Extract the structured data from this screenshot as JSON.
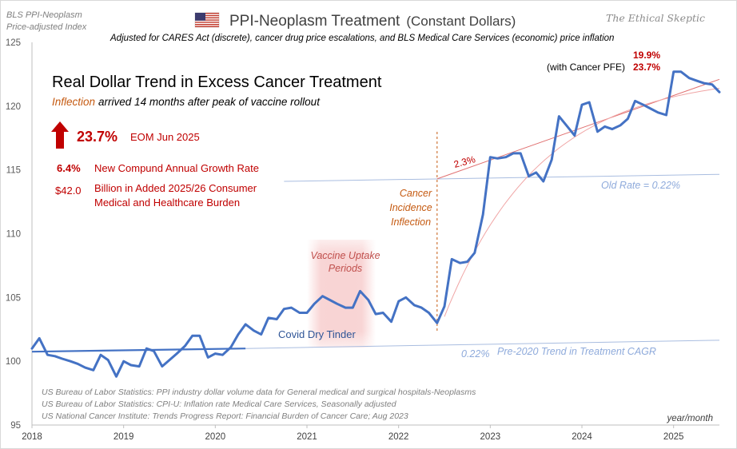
{
  "header": {
    "source_line1": "BLS PPI-Neoplasm",
    "source_line2": "Price-adjusted Index",
    "title": "PPI-Neoplasm Treatment",
    "title_suffix": "(Constant Dollars)",
    "subtitle": "Adjusted for CARES Act (discrete), cancer drug price escalations, and BLS Medical Care Services (economic) price inflation",
    "brand": "The Ethical Skeptic"
  },
  "colors": {
    "series": "#4472c4",
    "trend": "#6a8fd0",
    "trend_light": "#a9bde0",
    "accent_red": "#c00000",
    "orange": "#c55a11",
    "curve_red": "#e07070"
  },
  "chart_data": {
    "type": "line",
    "title": "Real Dollar Trend in Excess Cancer Treatment",
    "xlabel": "year/month",
    "ylabel": "",
    "xlim": [
      2018.0,
      2025.5
    ],
    "ylim": [
      95,
      125
    ],
    "xticks": [
      2018,
      2019,
      2020,
      2021,
      2022,
      2023,
      2024,
      2025
    ],
    "yticks": [
      95,
      100,
      105,
      110,
      115,
      120,
      125
    ],
    "series": [
      {
        "name": "PPI-Neoplasm Treatment (Constant Dollars)",
        "x": [
          2018.0,
          2018.08,
          2018.17,
          2018.25,
          2018.33,
          2018.42,
          2018.5,
          2018.58,
          2018.67,
          2018.75,
          2018.83,
          2018.92,
          2019.0,
          2019.08,
          2019.17,
          2019.25,
          2019.33,
          2019.42,
          2019.5,
          2019.58,
          2019.67,
          2019.75,
          2019.83,
          2019.92,
          2020.0,
          2020.08,
          2020.17,
          2020.25,
          2020.33,
          2020.42,
          2020.5,
          2020.58,
          2020.67,
          2020.75,
          2020.83,
          2020.92,
          2021.0,
          2021.08,
          2021.17,
          2021.25,
          2021.33,
          2021.42,
          2021.5,
          2021.58,
          2021.67,
          2021.75,
          2021.83,
          2021.92,
          2022.0,
          2022.08,
          2022.17,
          2022.25,
          2022.33,
          2022.42,
          2022.5,
          2022.58,
          2022.67,
          2022.75,
          2022.83,
          2022.92,
          2023.0,
          2023.08,
          2023.17,
          2023.25,
          2023.33,
          2023.42,
          2023.5,
          2023.58,
          2023.67,
          2023.75,
          2023.83,
          2023.92,
          2024.0,
          2024.08,
          2024.17,
          2024.25,
          2024.33,
          2024.42,
          2024.5,
          2024.58,
          2024.67,
          2024.75,
          2024.83,
          2024.92,
          2025.0,
          2025.08,
          2025.17,
          2025.25,
          2025.33,
          2025.42,
          2025.5
        ],
        "values": [
          101.0,
          101.8,
          100.5,
          100.4,
          100.2,
          100.0,
          99.8,
          99.5,
          99.3,
          100.5,
          100.1,
          98.8,
          100.0,
          99.7,
          99.6,
          101.0,
          100.8,
          99.6,
          100.1,
          100.6,
          101.2,
          102.0,
          102.0,
          100.3,
          100.6,
          100.5,
          101.1,
          102.1,
          102.9,
          102.4,
          102.1,
          103.4,
          103.3,
          104.1,
          104.2,
          103.8,
          103.8,
          104.5,
          105.1,
          104.8,
          104.5,
          104.2,
          104.2,
          105.5,
          104.8,
          103.7,
          103.8,
          103.1,
          104.7,
          105.0,
          104.4,
          104.2,
          103.8,
          103.0,
          104.3,
          108.0,
          107.7,
          107.8,
          108.5,
          111.5,
          116.0,
          115.9,
          116.0,
          116.3,
          116.3,
          114.5,
          114.8,
          114.1,
          115.8,
          119.2,
          118.5,
          117.7,
          120.1,
          120.3,
          118.0,
          118.4,
          118.2,
          118.5,
          119.0,
          120.4,
          120.1,
          119.8,
          119.5,
          119.3,
          122.7,
          122.7,
          122.2,
          122.0,
          121.8,
          121.7,
          121.1
        ]
      }
    ],
    "trend_lines": [
      {
        "name": "Pre-2020 Trend in Treatment CAGR",
        "x": [
          2018.0,
          2020.33
        ],
        "y": [
          100.75,
          101.0
        ]
      },
      {
        "name": "Pre-2020 Trend extended",
        "x": [
          2020.33,
          2025.5
        ],
        "y": [
          101.0,
          101.65
        ]
      },
      {
        "name": "Old Rate",
        "x": [
          2020.75,
          2025.5
        ],
        "y": [
          114.1,
          114.65
        ]
      },
      {
        "name": "2.3% trend",
        "x": [
          2022.42,
          2025.5
        ],
        "y": [
          114.3,
          122.1
        ]
      }
    ],
    "inflection_x": 2022.42,
    "vaccine_band": [
      2021.0,
      2021.75
    ],
    "annotations": {
      "inflection_prefix": "Inflection",
      "inflection_rest": "arrived 14 months after peak of vaccine rollout",
      "headline_pct": "23.7%",
      "eom": "EOM Jun 2025",
      "cagr_value": "6.4%",
      "cagr_text": "New Compund Annual Growth Rate",
      "billion_value": "$42.0",
      "billion_text_line1": "Billion in Added 2025/26 Consumer",
      "billion_text_line2": "Medical and Healthcare Burden",
      "vaccine_line1": "Vaccine Uptake",
      "vaccine_line2": "Periods",
      "covid": "Covid Dry Tinder",
      "cancer_line1": "Cancer",
      "cancer_line2": "Incidence",
      "cancer_line3": "Inflection",
      "rate_23": "2.3%",
      "old_rate": "Old Rate = 0.22%",
      "pre2020_pct": "0.22%",
      "pre2020_text": "Pre-2020 Trend in Treatment CAGR",
      "top_right_pct": "19.9%",
      "pfe_label": "(with Cancer PFE)",
      "pfe_pct": "23.7%"
    },
    "sources": [
      "US Bureau of Labor Statistics: PPI industry dollar volume data for General medical and surgical hospitals-Neoplasms",
      "US Bureau of Labor Statistics: CPI-U: Inflation rate Medical Care Services, Seasonally adjusted",
      "US National Cancer Institute: Trends Progress Report: Financial Burden of Cancer Care; Aug 2023"
    ]
  }
}
